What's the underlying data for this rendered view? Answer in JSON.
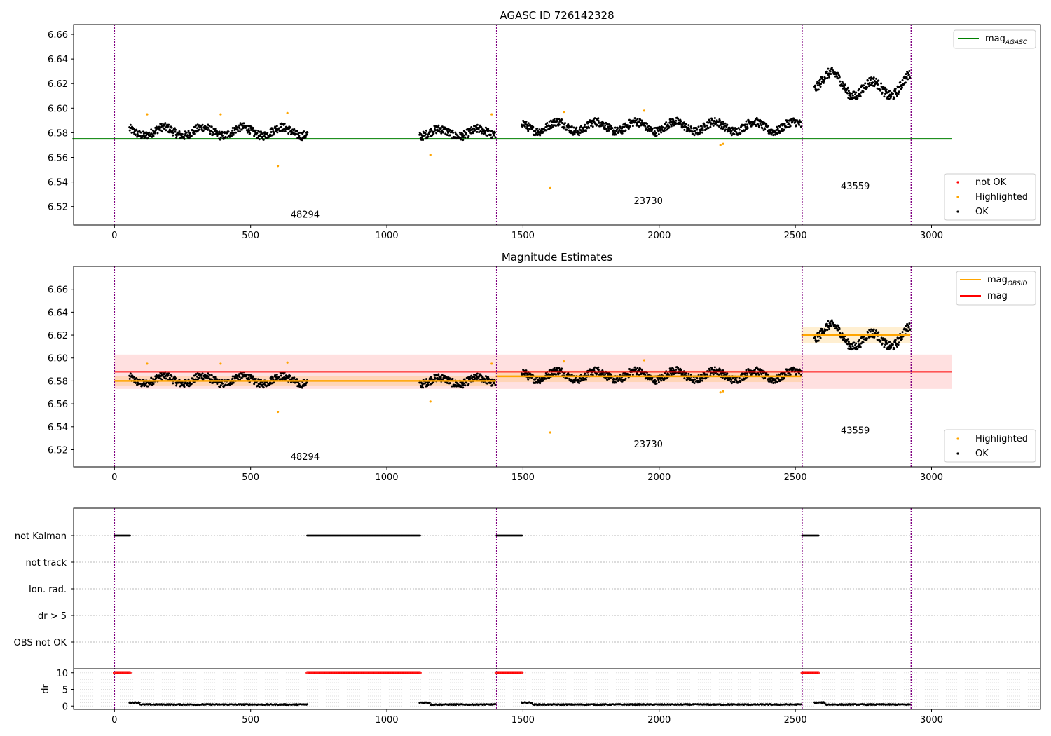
{
  "colors": {
    "ok": "#000000",
    "highlighted": "#ffa500",
    "not_ok": "#ff0000",
    "mag_agasc": "#008000",
    "mag_obsid": "#ffa500",
    "mag": "#ff0000",
    "obs_boundary": "#800080"
  },
  "chart_data": [
    {
      "type": "scatter",
      "title": "AGASC ID 726142328",
      "xlim": [
        -150,
        3400
      ],
      "ylim": [
        6.505,
        6.668
      ],
      "xticks": [
        "0",
        "500",
        "1000",
        "1500",
        "2000",
        "2500",
        "3000"
      ],
      "yticks": [
        "6.52",
        "6.54",
        "6.56",
        "6.58",
        "6.60",
        "6.62",
        "6.64",
        "6.66"
      ],
      "legend_lines": [
        {
          "label": "mag",
          "subscript": "AGASC",
          "color": "#008000"
        }
      ],
      "legend_points": [
        {
          "label": "not OK",
          "color": "#ff0000"
        },
        {
          "label": "Highlighted",
          "color": "#ffa500"
        },
        {
          "label": "OK",
          "color": "#000000"
        }
      ],
      "mag_agasc": 6.575,
      "obsids": [
        {
          "label": "48294",
          "x": 700,
          "y": 6.511
        },
        {
          "label": "23730",
          "x": 1960,
          "y": 6.522
        },
        {
          "label": "43559",
          "x": 2720,
          "y": 6.534
        }
      ],
      "highlighted_points": [
        [
          120,
          6.595
        ],
        [
          390,
          6.595
        ],
        [
          600,
          6.553
        ],
        [
          635,
          6.596
        ],
        [
          1160,
          6.562
        ],
        [
          1385,
          6.595
        ],
        [
          1600,
          6.535
        ],
        [
          1650,
          6.597
        ],
        [
          1945,
          6.598
        ],
        [
          2225,
          6.57
        ],
        [
          2235,
          6.571
        ]
      ]
    },
    {
      "type": "scatter",
      "title": "Magnitude Estimates",
      "xlim": [
        -150,
        3400
      ],
      "ylim": [
        6.505,
        6.68
      ],
      "xticks": [
        "0",
        "500",
        "1000",
        "1500",
        "2000",
        "2500",
        "3000"
      ],
      "yticks": [
        "6.52",
        "6.54",
        "6.56",
        "6.58",
        "6.60",
        "6.62",
        "6.64",
        "6.66"
      ],
      "legend_lines": [
        {
          "label": "mag",
          "subscript": "OBSID",
          "color": "#ffa500"
        },
        {
          "label": "mag",
          "subscript": "",
          "color": "#ff0000"
        }
      ],
      "legend_points": [
        {
          "label": "Highlighted",
          "color": "#ffa500"
        },
        {
          "label": "OK",
          "color": "#000000"
        }
      ],
      "mag": 6.588,
      "mag_band": [
        6.573,
        6.603
      ],
      "obsid_mags": [
        {
          "x0": 0,
          "x1": 1400,
          "mag": 6.58,
          "band": [
            6.576,
            6.584
          ]
        },
        {
          "x0": 1400,
          "x1": 2522,
          "mag": 6.584,
          "band": [
            6.579,
            6.589
          ]
        },
        {
          "x0": 2522,
          "x1": 2922,
          "mag": 6.62,
          "band": [
            6.613,
            6.627
          ]
        }
      ],
      "obsids": [
        {
          "label": "48294",
          "x": 700,
          "y": 6.511
        },
        {
          "label": "23730",
          "x": 1960,
          "y": 6.522
        },
        {
          "label": "43559",
          "x": 2720,
          "y": 6.534
        }
      ],
      "highlighted_points": [
        [
          120,
          6.595
        ],
        [
          390,
          6.595
        ],
        [
          600,
          6.553
        ],
        [
          635,
          6.596
        ],
        [
          1160,
          6.562
        ],
        [
          1385,
          6.595
        ],
        [
          1600,
          6.535
        ],
        [
          1650,
          6.597
        ],
        [
          1945,
          6.598
        ],
        [
          2225,
          6.57
        ],
        [
          2235,
          6.571
        ]
      ]
    },
    {
      "type": "scatter",
      "title": "",
      "xlim": [
        -150,
        3400
      ],
      "xticks": [
        "0",
        "500",
        "1000",
        "1500",
        "2000",
        "2500",
        "3000"
      ],
      "flag_rows": [
        "not Kalman",
        "not track",
        "Ion. rad.",
        "dr > 5",
        "OBS not OK"
      ],
      "not_kalman_ranges": [
        [
          0,
          58
        ],
        [
          708,
          1122
        ],
        [
          1403,
          1497
        ],
        [
          2525,
          2585
        ]
      ],
      "dr_ylabel": "dr",
      "dr_yticks": [
        "0",
        "5",
        "10"
      ],
      "dr_ylim": [
        -1,
        11
      ]
    }
  ],
  "segments": [
    {
      "x0": 55,
      "x1": 710,
      "base": 6.581,
      "amp": 0.0035,
      "noise": 0.0035
    },
    {
      "x0": 1120,
      "x1": 1400,
      "base": 6.58,
      "amp": 0.003,
      "noise": 0.0035
    },
    {
      "x0": 1495,
      "x1": 2522,
      "base": 6.585,
      "amp": 0.004,
      "noise": 0.0035
    },
    {
      "x0": 2570,
      "x1": 2922,
      "base": 6.62,
      "amp": 0.008,
      "noise": 0.004
    }
  ],
  "obs_boundaries": [
    0,
    1403,
    2525,
    2925
  ]
}
